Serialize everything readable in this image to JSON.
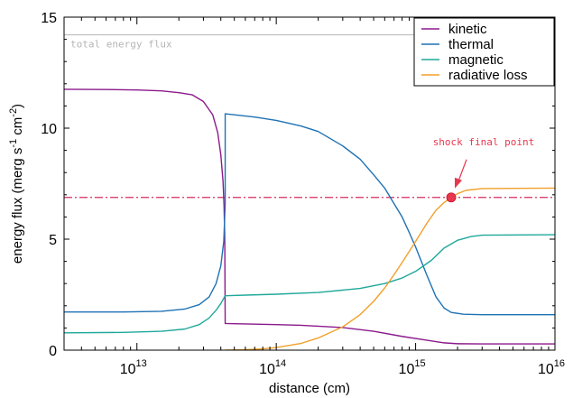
{
  "chart_data": {
    "type": "line",
    "xlabel_base": "distance (cm)",
    "ylabel_parts": {
      "pre": "energy flux (merg s",
      "sup1": "-1",
      "mid": " cm",
      "sup2": "-2",
      "post": ")"
    },
    "xscale": "log",
    "xlim": [
      3000000000000.0,
      1e+16
    ],
    "ylim": [
      0,
      15
    ],
    "yticks": [
      0,
      5,
      10,
      15
    ],
    "xticks": [
      {
        "value": 10000000000000.0,
        "base": "10",
        "exp": "13"
      },
      {
        "value": 100000000000000.0,
        "base": "10",
        "exp": "14"
      },
      {
        "value": 1000000000000000.0,
        "base": "10",
        "exp": "15"
      },
      {
        "value": 1e+16,
        "base": "10",
        "exp": "16"
      }
    ],
    "legend_position": "top-right",
    "grid": false,
    "series": [
      {
        "name": "kinetic",
        "color": "#8b1a8b",
        "points": [
          [
            3000000000000.0,
            11.75
          ],
          [
            6000000000000.0,
            11.74
          ],
          [
            10000000000000.0,
            11.72
          ],
          [
            15000000000000.0,
            11.68
          ],
          [
            20000000000000.0,
            11.6
          ],
          [
            25000000000000.0,
            11.5
          ],
          [
            30000000000000.0,
            11.2
          ],
          [
            35000000000000.0,
            10.6
          ],
          [
            38000000000000.0,
            9.8
          ],
          [
            40000000000000.0,
            8.8
          ],
          [
            41500000000000.0,
            7.6
          ],
          [
            42200000000000.0,
            6.5
          ],
          [
            42700000000000.0,
            5.0
          ],
          [
            43000000000000.0,
            1.2
          ],
          [
            60000000000000.0,
            1.18
          ],
          [
            100000000000000.0,
            1.15
          ],
          [
            150000000000000.0,
            1.12
          ],
          [
            200000000000000.0,
            1.08
          ],
          [
            300000000000000.0,
            1.02
          ],
          [
            500000000000000.0,
            0.85
          ],
          [
            800000000000000.0,
            0.62
          ],
          [
            1200000000000000.0,
            0.45
          ],
          [
            1600000000000000.0,
            0.33
          ],
          [
            2000000000000000.0,
            0.29
          ],
          [
            3000000000000000.0,
            0.28
          ],
          [
            1e+16,
            0.28
          ]
        ]
      },
      {
        "name": "thermal",
        "color": "#1e72b4",
        "points": [
          [
            3000000000000.0,
            1.72
          ],
          [
            8000000000000.0,
            1.72
          ],
          [
            15000000000000.0,
            1.75
          ],
          [
            22000000000000.0,
            1.85
          ],
          [
            28000000000000.0,
            2.05
          ],
          [
            33000000000000.0,
            2.4
          ],
          [
            37000000000000.0,
            3.0
          ],
          [
            40000000000000.0,
            3.8
          ],
          [
            42000000000000.0,
            4.9
          ],
          [
            43000000000000.0,
            6.6
          ],
          [
            43000000000000.0,
            10.65
          ],
          [
            50000000000000.0,
            10.6
          ],
          [
            70000000000000.0,
            10.5
          ],
          [
            100000000000000.0,
            10.35
          ],
          [
            150000000000000.0,
            10.1
          ],
          [
            200000000000000.0,
            9.85
          ],
          [
            300000000000000.0,
            9.2
          ],
          [
            400000000000000.0,
            8.6
          ],
          [
            500000000000000.0,
            7.9
          ],
          [
            600000000000000.0,
            7.3
          ],
          [
            700000000000000.0,
            6.6
          ],
          [
            800000000000000.0,
            6.0
          ],
          [
            900000000000000.0,
            5.3
          ],
          [
            1000000000000000.0,
            4.65
          ],
          [
            1200000000000000.0,
            3.4
          ],
          [
            1400000000000000.0,
            2.4
          ],
          [
            1600000000000000.0,
            1.9
          ],
          [
            1800000000000000.0,
            1.7
          ],
          [
            2200000000000000.0,
            1.62
          ],
          [
            3000000000000000.0,
            1.6
          ],
          [
            1e+16,
            1.6
          ]
        ]
      },
      {
        "name": "magnetic",
        "color": "#1fa89a",
        "points": [
          [
            3000000000000.0,
            0.78
          ],
          [
            8000000000000.0,
            0.8
          ],
          [
            15000000000000.0,
            0.85
          ],
          [
            22000000000000.0,
            0.95
          ],
          [
            28000000000000.0,
            1.15
          ],
          [
            33000000000000.0,
            1.45
          ],
          [
            37000000000000.0,
            1.8
          ],
          [
            40000000000000.0,
            2.1
          ],
          [
            43000000000000.0,
            2.45
          ],
          [
            60000000000000.0,
            2.48
          ],
          [
            100000000000000.0,
            2.52
          ],
          [
            200000000000000.0,
            2.6
          ],
          [
            400000000000000.0,
            2.78
          ],
          [
            600000000000000.0,
            3.0
          ],
          [
            800000000000000.0,
            3.25
          ],
          [
            1000000000000000.0,
            3.55
          ],
          [
            1300000000000000.0,
            4.05
          ],
          [
            1600000000000000.0,
            4.6
          ],
          [
            2000000000000000.0,
            4.95
          ],
          [
            2500000000000000.0,
            5.12
          ],
          [
            3000000000000000.0,
            5.18
          ],
          [
            1e+16,
            5.2
          ]
        ]
      },
      {
        "name": "radiative loss",
        "color": "#f0a02a",
        "points": [
          [
            43000000000000.0,
            0.0
          ],
          [
            60000000000000.0,
            0.02
          ],
          [
            80000000000000.0,
            0.06
          ],
          [
            100000000000000.0,
            0.12
          ],
          [
            150000000000000.0,
            0.3
          ],
          [
            200000000000000.0,
            0.55
          ],
          [
            300000000000000.0,
            1.05
          ],
          [
            400000000000000.0,
            1.6
          ],
          [
            500000000000000.0,
            2.2
          ],
          [
            600000000000000.0,
            2.8
          ],
          [
            700000000000000.0,
            3.4
          ],
          [
            800000000000000.0,
            3.95
          ],
          [
            1000000000000000.0,
            4.9
          ],
          [
            1200000000000000.0,
            5.7
          ],
          [
            1400000000000000.0,
            6.3
          ],
          [
            1600000000000000.0,
            6.65
          ],
          [
            1800000000000000.0,
            6.88
          ],
          [
            2000000000000000.0,
            7.05
          ],
          [
            2300000000000000.0,
            7.2
          ],
          [
            3000000000000000.0,
            7.28
          ],
          [
            1e+16,
            7.3
          ]
        ]
      }
    ],
    "reference_lines": [
      {
        "label": "total energy flux",
        "value": 14.2,
        "color": "#b5b5b5",
        "style": "solid"
      },
      {
        "value": 6.88,
        "color": "#d62d5e",
        "style": "dashdot"
      }
    ],
    "annotation": {
      "text": "shock final point",
      "point": [
        1800000000000000.0,
        6.88
      ],
      "color": "#e8384e"
    }
  }
}
